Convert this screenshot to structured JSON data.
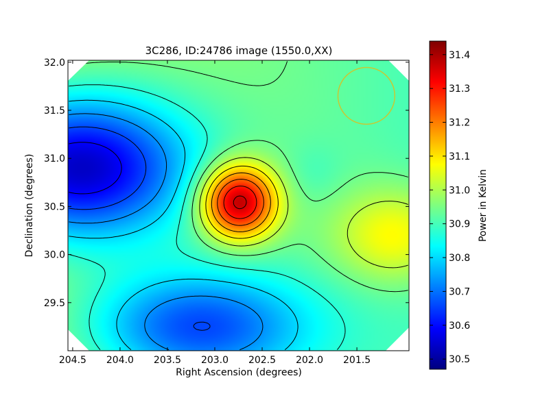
{
  "chart_data": {
    "type": "heatmap",
    "title": "3C286, ID:24786 image (1550.0,XX)",
    "xlabel": "Right Ascension (degrees)",
    "ylabel": "Declination (degrees)",
    "colorbar_label": "Power in Kelvin",
    "x_inverted": true,
    "xlim": [
      204.55,
      200.95
    ],
    "ylim": [
      29.0,
      32.02
    ],
    "x_ticks": [
      204.5,
      204.0,
      203.5,
      203.0,
      202.5,
      202.0,
      201.5
    ],
    "x_tick_labels": [
      "204.5",
      "204.0",
      "203.5",
      "203.0",
      "202.5",
      "202.0",
      "201.5"
    ],
    "y_ticks": [
      29.5,
      30.0,
      30.5,
      31.0,
      31.5,
      32.0
    ],
    "y_tick_labels": [
      "29.5",
      "30.0",
      "30.5",
      "31.0",
      "31.5",
      "32.0"
    ],
    "colorbar_range": [
      30.47,
      31.44
    ],
    "colorbar_ticks": [
      30.5,
      30.6,
      30.7,
      30.8,
      30.9,
      31.0,
      31.1,
      31.2,
      31.3,
      31.4
    ],
    "colorbar_tick_labels": [
      "30.5",
      "30.6",
      "30.7",
      "30.8",
      "30.9",
      "31.0",
      "31.1",
      "31.2",
      "31.3",
      "31.4"
    ],
    "colormap": "jet",
    "colormap_stops": [
      "#00007f",
      "#0000ff",
      "#007fff",
      "#00ffff",
      "#7fff7f",
      "#ffff00",
      "#ff7f00",
      "#ff0000",
      "#7f0000"
    ],
    "base_level": 30.95,
    "features": [
      {
        "name": "peak",
        "ra": 202.75,
        "dec": 30.55,
        "value": 31.42
      },
      {
        "name": "west-minimum",
        "ra": 204.45,
        "dec": 30.9,
        "value": 30.48
      },
      {
        "name": "south-low",
        "ra": 203.2,
        "dec": 29.25,
        "value": 30.64
      },
      {
        "name": "east-secondary",
        "ra": 201.1,
        "dec": 30.2,
        "value": 31.12
      },
      {
        "name": "green-dip",
        "ra": 201.95,
        "dec": 30.85,
        "value": 30.92
      }
    ],
    "beam": {
      "ra": 201.4,
      "dec": 31.65,
      "radius_deg": 0.3,
      "color": "#c8c832"
    },
    "contour_color": "#000000"
  }
}
